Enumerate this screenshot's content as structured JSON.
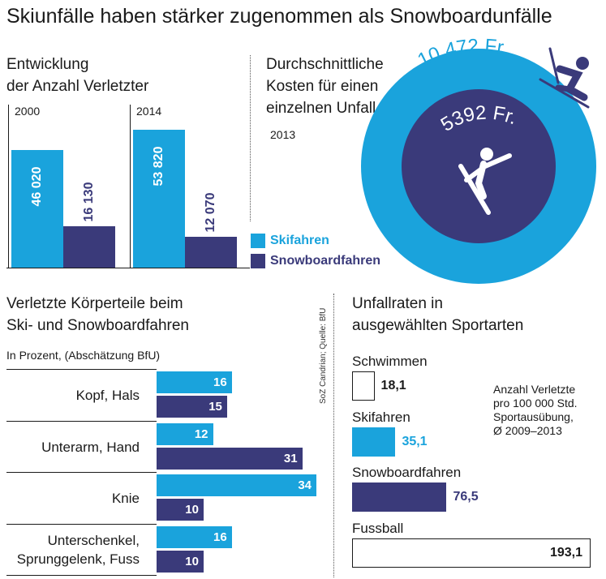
{
  "title": "Skiunfälle haben stärker zugenommen als Snowboardunfälle",
  "colors": {
    "ski": "#1aa3dc",
    "snowboard": "#3a3a7a",
    "text": "#1a1a1a"
  },
  "source": "SoZ Candrian; Quelle: BfU",
  "legend": {
    "ski": "Skifahren",
    "snowboard": "Snowboardfahren"
  },
  "chart_data": [
    {
      "type": "bar",
      "title": "Entwicklung der Anzahl Verletzter",
      "title_lines": [
        "Entwicklung",
        "der Anzahl Verletzter"
      ],
      "categories": [
        "2000",
        "2014"
      ],
      "series": [
        {
          "name": "Skifahren",
          "values": [
            46020,
            53820
          ],
          "labels": [
            "46 020",
            "53 820"
          ]
        },
        {
          "name": "Snowboardfahren",
          "values": [
            16130,
            12070
          ],
          "labels": [
            "16 130",
            "12 070"
          ]
        }
      ],
      "ylim": [
        0,
        60000
      ]
    },
    {
      "type": "bubble",
      "title": "Durchschnittliche Kosten für einen einzelnen Unfall",
      "title_lines": [
        "Durchschnittliche",
        "Kosten für einen",
        "einzelnen Unfall"
      ],
      "year": "2013",
      "series": [
        {
          "name": "Skifahren",
          "value": 10472,
          "label": "10 472 Fr."
        },
        {
          "name": "Snowboardfahren",
          "value": 5392,
          "label": "5392 Fr."
        }
      ]
    },
    {
      "type": "bar",
      "orientation": "horizontal",
      "title": "Verletzte Körperteile beim Ski- und Snowboardfahren",
      "title_lines": [
        "Verletzte Körperteile beim",
        "Ski- und Snowboardfahren"
      ],
      "subtitle": "In Prozent, (Abschätzung BfU)",
      "categories": [
        {
          "lines": [
            "Kopf, Hals"
          ]
        },
        {
          "lines": [
            "Unterarm, Hand"
          ]
        },
        {
          "lines": [
            "Knie"
          ]
        },
        {
          "lines": [
            "Unterschenkel,",
            "Sprunggelenk, Fuss"
          ]
        }
      ],
      "series": [
        {
          "name": "Skifahren",
          "values": [
            16,
            12,
            34,
            16
          ]
        },
        {
          "name": "Snowboardfahren",
          "values": [
            15,
            31,
            10,
            10
          ]
        }
      ],
      "xlim": [
        0,
        34
      ]
    },
    {
      "type": "bar",
      "orientation": "horizontal",
      "title": "Unfallraten in ausgewählten Sportarten",
      "title_lines": [
        "Unfallraten in",
        "ausgewählten Sportarten"
      ],
      "note_lines": [
        "Anzahl Verletzte",
        "pro 100 000 Std.",
        "Sportausübung,",
        "Ø 2009–2013"
      ],
      "categories": [
        "Schwimmen",
        "Skifahren",
        "Snowboardfahren",
        "Fussball"
      ],
      "values": [
        18.1,
        35.1,
        76.5,
        193.1
      ],
      "labels": [
        "18,1",
        "35,1",
        "76,5",
        "193,1"
      ],
      "xlim": [
        0,
        193.1
      ]
    }
  ]
}
